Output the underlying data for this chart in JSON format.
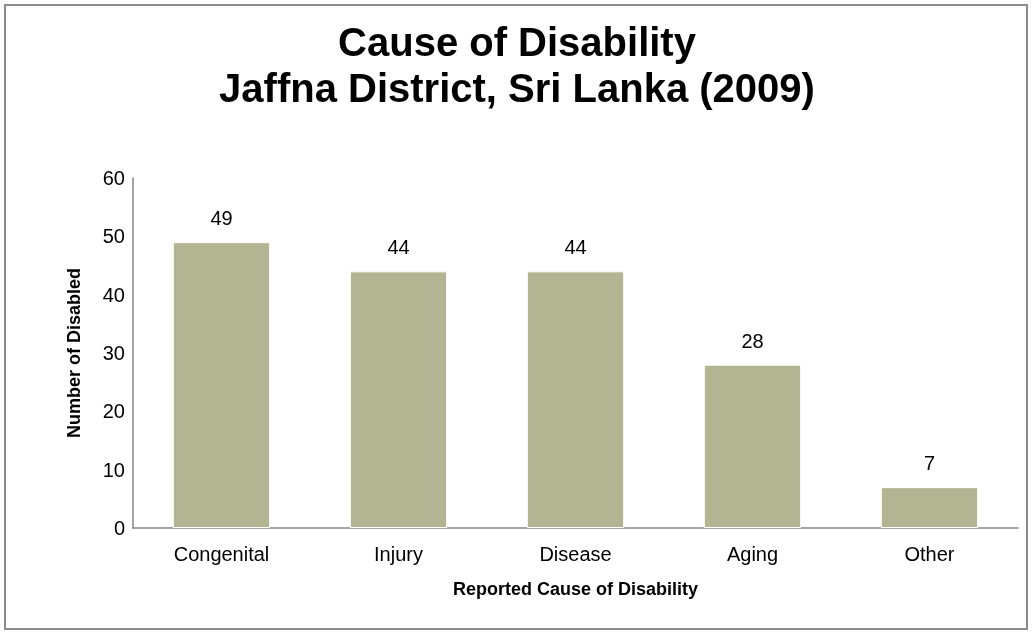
{
  "chart_data": {
    "type": "bar",
    "title": "Cause of Disability\nJaffna District, Sri Lanka (2009)",
    "xlabel": "Reported Cause of Disability",
    "ylabel": "Number of Disabled",
    "categories": [
      "Congenital",
      "Injury",
      "Disease",
      "Aging",
      "Other"
    ],
    "values": [
      49,
      44,
      44,
      28,
      7
    ],
    "color": "#b3b592",
    "ylim": [
      0,
      60
    ],
    "yticks": [
      0,
      10,
      20,
      30,
      40,
      50,
      60
    ],
    "grid": false,
    "data_labels": true
  }
}
